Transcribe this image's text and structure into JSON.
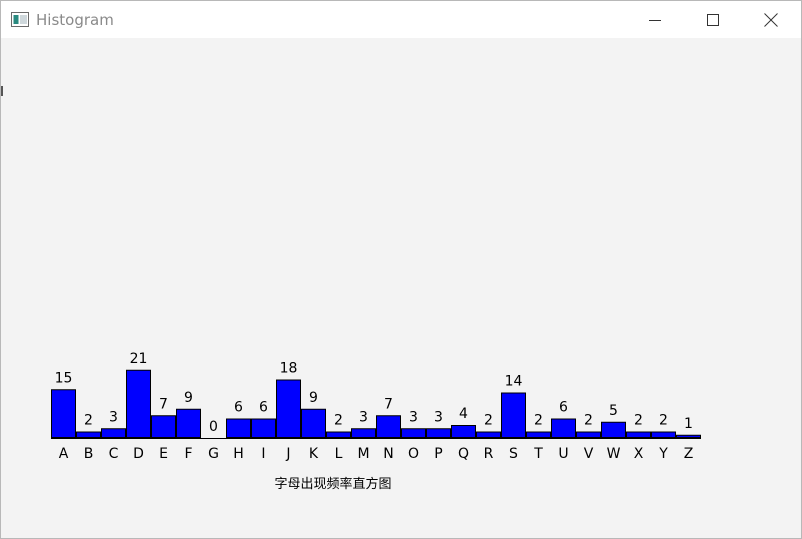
{
  "window": {
    "title": "Histogram",
    "controls": {
      "minimize": "minimize-icon",
      "maximize": "maximize-icon",
      "close": "close-icon"
    }
  },
  "chart_data": {
    "type": "bar",
    "categories": [
      "A",
      "B",
      "C",
      "D",
      "E",
      "F",
      "G",
      "H",
      "I",
      "J",
      "K",
      "L",
      "M",
      "N",
      "O",
      "P",
      "Q",
      "R",
      "S",
      "T",
      "U",
      "V",
      "W",
      "X",
      "Y",
      "Z"
    ],
    "values": [
      15,
      2,
      3,
      21,
      7,
      9,
      0,
      6,
      6,
      18,
      9,
      2,
      3,
      7,
      3,
      3,
      4,
      2,
      14,
      2,
      6,
      2,
      5,
      2,
      2,
      1
    ],
    "xlabel": "字母出现频率直方图",
    "ylabel": "",
    "bar_color": "#0000ff",
    "bar_edge_color": "#000000",
    "data_labels": true,
    "grid": false,
    "legend": "none"
  }
}
